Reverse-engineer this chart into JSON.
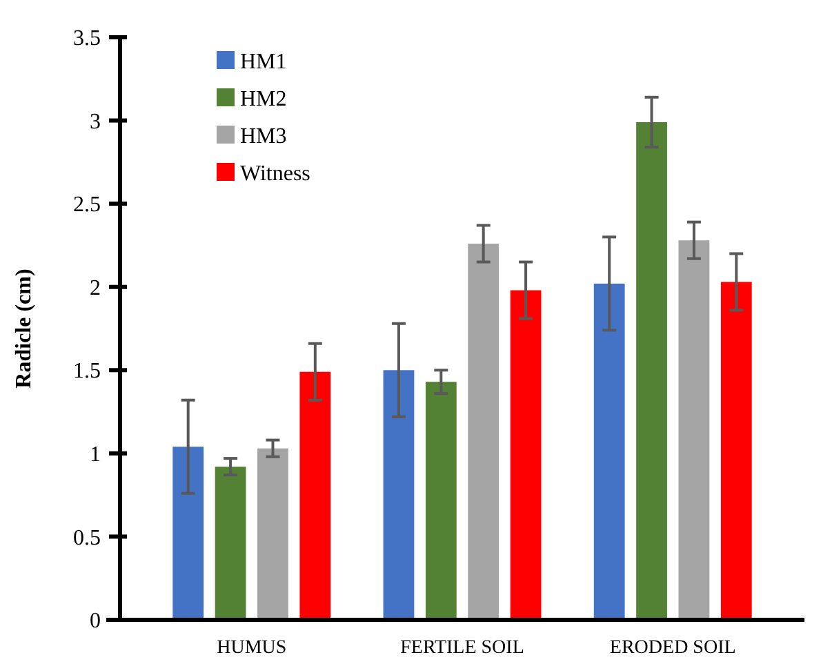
{
  "chart_data": {
    "type": "bar",
    "ylabel": "Radicle (cm)",
    "categories": [
      "HUMUS",
      "FERTILE SOIL",
      "ERODED SOIL"
    ],
    "series": [
      {
        "name": "HM1",
        "color": "#4472c4",
        "values": [
          1.04,
          1.5,
          2.02
        ],
        "errors": [
          0.28,
          0.28,
          0.28
        ]
      },
      {
        "name": "HM2",
        "color": "#548235",
        "values": [
          0.92,
          1.43,
          2.99
        ],
        "errors": [
          0.05,
          0.07,
          0.15
        ]
      },
      {
        "name": "HM3",
        "color": "#a5a5a5",
        "values": [
          1.03,
          2.26,
          2.28
        ],
        "errors": [
          0.05,
          0.11,
          0.11
        ]
      },
      {
        "name": "Witness",
        "color": "#ff0000",
        "values": [
          1.49,
          1.98,
          2.03
        ],
        "errors": [
          0.17,
          0.17,
          0.17
        ]
      }
    ],
    "ylim": [
      0,
      3.5
    ],
    "yticks": [
      0,
      0.5,
      1,
      1.5,
      2,
      2.5,
      3,
      3.5
    ],
    "grid": false,
    "legend": "top left"
  }
}
